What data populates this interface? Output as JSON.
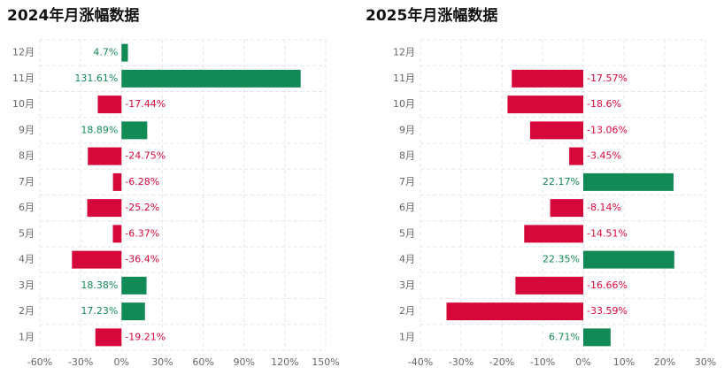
{
  "chart_data": [
    {
      "type": "hbar",
      "title": "2024年月涨幅数据",
      "categories": [
        "1月",
        "2月",
        "3月",
        "4月",
        "5月",
        "6月",
        "7月",
        "8月",
        "9月",
        "10月",
        "11月",
        "12月"
      ],
      "values": [
        -19.21,
        17.23,
        18.38,
        -36.4,
        -6.37,
        -25.2,
        -6.28,
        -24.75,
        18.89,
        -17.44,
        131.61,
        4.7
      ],
      "value_labels": [
        "-19.21%",
        "17.23%",
        "18.38%",
        "-36.4%",
        "-6.37%",
        "-25.2%",
        "-6.28%",
        "-24.75%",
        "18.89%",
        "-17.44%",
        "131.61%",
        "4.7%"
      ],
      "positive_color": "#128a56",
      "negative_color": "#d6083b",
      "xlim": [
        -60,
        150
      ],
      "xticks": [
        {
          "value": -60,
          "label": "-60%"
        },
        {
          "value": -30,
          "label": "-30%"
        },
        {
          "value": 0,
          "label": "0%"
        },
        {
          "value": 30,
          "label": "30%"
        },
        {
          "value": 60,
          "label": "60%"
        },
        {
          "value": 90,
          "label": "90%"
        },
        {
          "value": 120,
          "label": "120%"
        },
        {
          "value": 150,
          "label": "150%"
        }
      ],
      "grid": true
    },
    {
      "type": "hbar",
      "title": "2025年月涨幅数据",
      "categories": [
        "1月",
        "2月",
        "3月",
        "4月",
        "5月",
        "6月",
        "7月",
        "8月",
        "9月",
        "10月",
        "11月",
        "12月"
      ],
      "values": [
        6.71,
        -33.59,
        -16.66,
        22.35,
        -14.51,
        -8.14,
        22.17,
        -3.45,
        -13.06,
        -18.6,
        -17.57,
        null
      ],
      "value_labels": [
        "6.71%",
        "-33.59%",
        "-16.66%",
        "22.35%",
        "-14.51%",
        "-8.14%",
        "22.17%",
        "-3.45%",
        "-13.06%",
        "-18.6%",
        "-17.57%",
        null
      ],
      "positive_color": "#128a56",
      "negative_color": "#d6083b",
      "xlim": [
        -40,
        30
      ],
      "xticks": [
        {
          "value": -40,
          "label": "-40%"
        },
        {
          "value": -30,
          "label": "-30%"
        },
        {
          "value": -20,
          "label": "-20%"
        },
        {
          "value": -10,
          "label": "-10%"
        },
        {
          "value": 0,
          "label": "0%"
        },
        {
          "value": 10,
          "label": "10%"
        },
        {
          "value": 20,
          "label": "20%"
        },
        {
          "value": 30,
          "label": "30%"
        }
      ],
      "grid": true
    }
  ]
}
